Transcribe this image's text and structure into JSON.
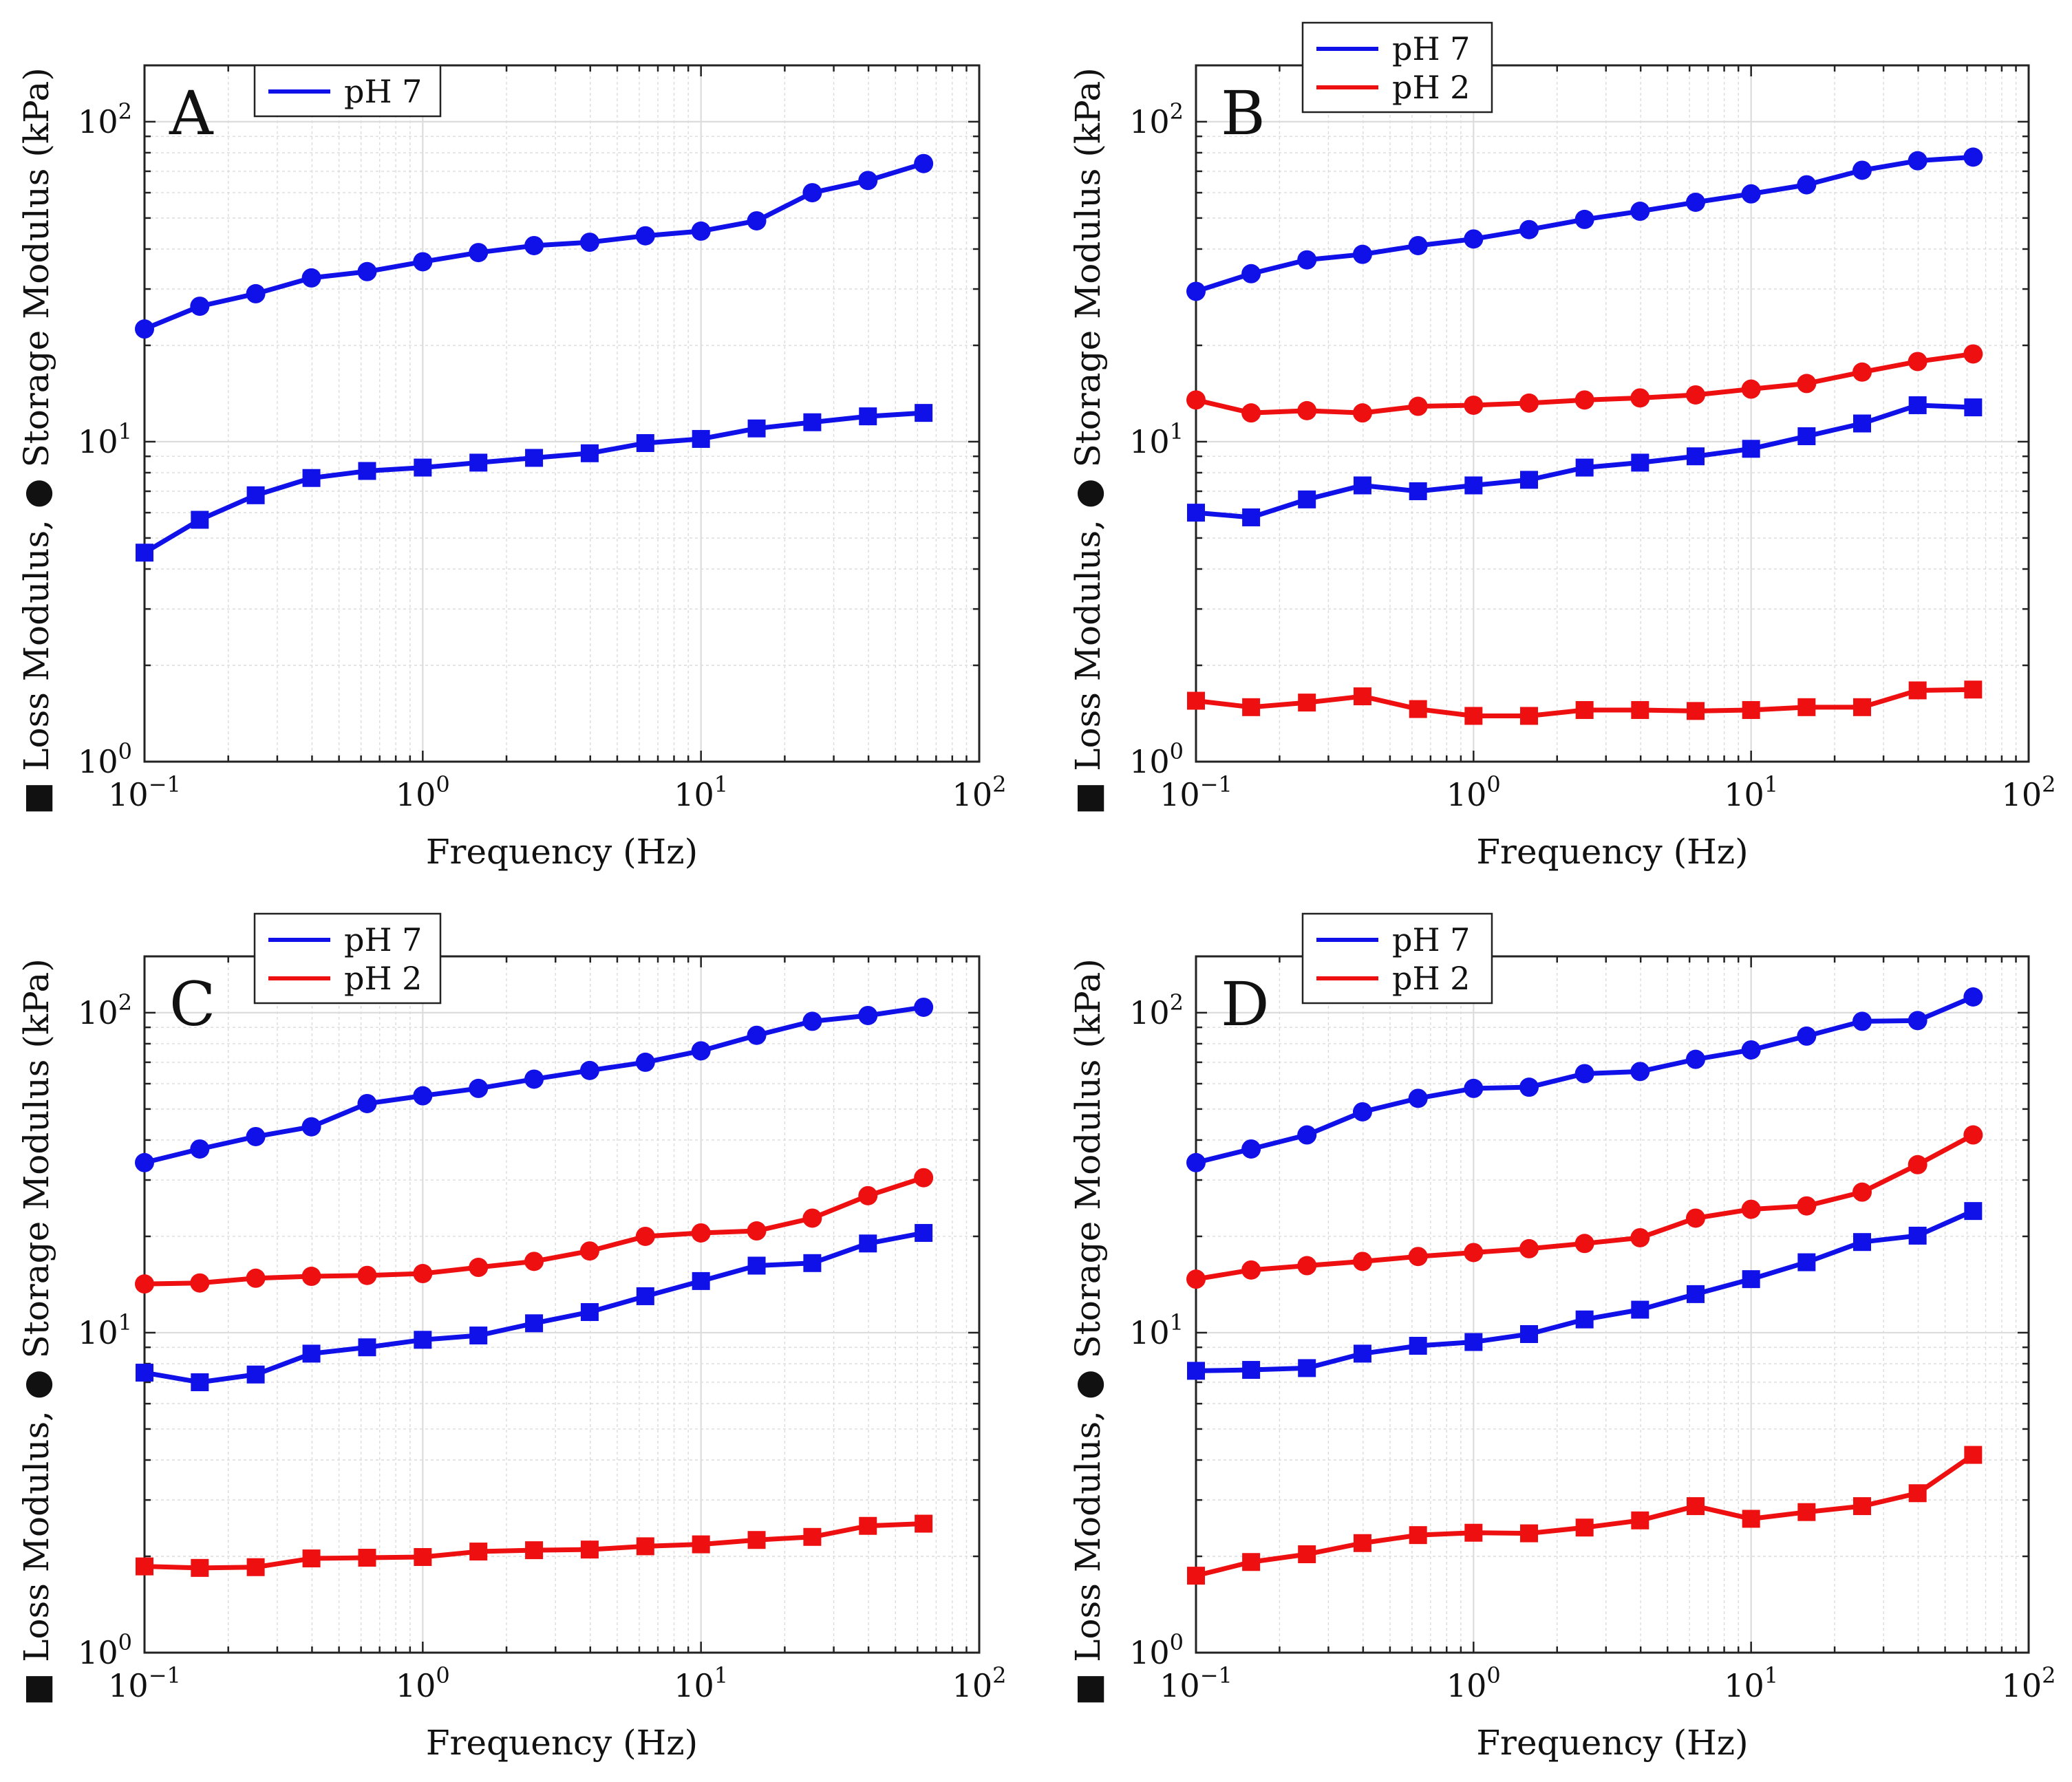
{
  "figure": {
    "ylabel": "■ Loss Modulus, ● Storage Modulus (kPa)",
    "xlabel": "Frequency (Hz)",
    "colors": {
      "pH 7": "#1010e8",
      "pH 2": "#ee1010"
    }
  },
  "chart_data": [
    {
      "type": "line",
      "panel": "A",
      "xlabel": "Frequency (Hz)",
      "ylabel": "■ Loss Modulus, ● Storage Modulus (kPa)",
      "xscale": "log",
      "yscale": "log",
      "xlim": [
        0.1,
        100
      ],
      "ylim": [
        1,
        150
      ],
      "x_ticks": [
        {
          "base": "10",
          "exp": "−1"
        },
        {
          "base": "10",
          "exp": "0"
        },
        {
          "base": "10",
          "exp": "1"
        },
        {
          "base": "10",
          "exp": "2"
        }
      ],
      "y_ticks": [
        {
          "base": "10",
          "exp": "0"
        },
        {
          "base": "10",
          "exp": "1"
        },
        {
          "base": "10",
          "exp": "2"
        }
      ],
      "grid": true,
      "legend": {
        "position": "top-left",
        "entries": [
          "pH 7"
        ]
      },
      "x": [
        0.1,
        0.158,
        0.251,
        0.398,
        0.631,
        1.0,
        1.585,
        2.512,
        3.981,
        6.31,
        10.0,
        15.85,
        25.12,
        39.81,
        63.1
      ],
      "series": [
        {
          "name": "pH 7",
          "modulus": "storage",
          "marker": "circle",
          "color": "#1010e8",
          "values": [
            22.5,
            26.5,
            29,
            32.5,
            34,
            36.5,
            39,
            41,
            42,
            44,
            45.5,
            49,
            60,
            65.5,
            74
          ]
        },
        {
          "name": "pH 7",
          "modulus": "loss",
          "marker": "square",
          "color": "#1010e8",
          "values": [
            4.5,
            5.7,
            6.8,
            7.7,
            8.1,
            8.3,
            8.6,
            8.9,
            9.2,
            9.9,
            10.2,
            11,
            11.5,
            12,
            12.3
          ]
        }
      ]
    },
    {
      "type": "line",
      "panel": "B",
      "xlabel": "Frequency (Hz)",
      "ylabel": "■ Loss Modulus, ● Storage Modulus (kPa)",
      "xscale": "log",
      "yscale": "log",
      "xlim": [
        0.1,
        100
      ],
      "ylim": [
        1,
        150
      ],
      "x_ticks": [
        {
          "base": "10",
          "exp": "−1"
        },
        {
          "base": "10",
          "exp": "0"
        },
        {
          "base": "10",
          "exp": "1"
        },
        {
          "base": "10",
          "exp": "2"
        }
      ],
      "y_ticks": [
        {
          "base": "10",
          "exp": "0"
        },
        {
          "base": "10",
          "exp": "1"
        },
        {
          "base": "10",
          "exp": "2"
        }
      ],
      "grid": true,
      "legend": {
        "position": "top-left",
        "entries": [
          "pH 7",
          "pH 2"
        ]
      },
      "x": [
        0.1,
        0.158,
        0.251,
        0.398,
        0.631,
        1.0,
        1.585,
        2.512,
        3.981,
        6.31,
        10.0,
        15.85,
        25.12,
        39.81,
        63.1
      ],
      "series": [
        {
          "name": "pH 7",
          "modulus": "storage",
          "marker": "circle",
          "color": "#1010e8",
          "values": [
            29.5,
            33.5,
            37,
            38.5,
            41,
            43,
            46,
            49.5,
            52.5,
            56,
            59.5,
            63.5,
            70.5,
            75.5,
            77.5
          ]
        },
        {
          "name": "pH 2",
          "modulus": "storage",
          "marker": "circle",
          "color": "#ee1010",
          "values": [
            13.5,
            12.3,
            12.5,
            12.3,
            12.9,
            13,
            13.2,
            13.5,
            13.7,
            14,
            14.6,
            15.2,
            16.5,
            17.8,
            18.8
          ]
        },
        {
          "name": "pH 7",
          "modulus": "loss",
          "marker": "square",
          "color": "#1010e8",
          "values": [
            6.0,
            5.8,
            6.6,
            7.3,
            7.0,
            7.3,
            7.6,
            8.3,
            8.6,
            9.0,
            9.5,
            10.4,
            11.4,
            13.0,
            12.8
          ]
        },
        {
          "name": "pH 2",
          "modulus": "loss",
          "marker": "square",
          "color": "#ee1010",
          "values": [
            1.55,
            1.48,
            1.53,
            1.6,
            1.46,
            1.39,
            1.39,
            1.45,
            1.45,
            1.44,
            1.45,
            1.48,
            1.48,
            1.67,
            1.68
          ]
        }
      ]
    },
    {
      "type": "line",
      "panel": "C",
      "xlabel": "Frequency (Hz)",
      "ylabel": "■ Loss Modulus, ● Storage Modulus (kPa)",
      "xscale": "log",
      "yscale": "log",
      "xlim": [
        0.1,
        100
      ],
      "ylim": [
        1,
        150
      ],
      "x_ticks": [
        {
          "base": "10",
          "exp": "−1"
        },
        {
          "base": "10",
          "exp": "0"
        },
        {
          "base": "10",
          "exp": "1"
        },
        {
          "base": "10",
          "exp": "2"
        }
      ],
      "y_ticks": [
        {
          "base": "10",
          "exp": "0"
        },
        {
          "base": "10",
          "exp": "1"
        },
        {
          "base": "10",
          "exp": "2"
        }
      ],
      "grid": true,
      "legend": {
        "position": "top-left",
        "entries": [
          "pH 7",
          "pH 2"
        ]
      },
      "x": [
        0.1,
        0.158,
        0.251,
        0.398,
        0.631,
        1.0,
        1.585,
        2.512,
        3.981,
        6.31,
        10.0,
        15.85,
        25.12,
        39.81,
        63.1
      ],
      "series": [
        {
          "name": "pH 7",
          "modulus": "storage",
          "marker": "circle",
          "color": "#1010e8",
          "values": [
            34,
            37.5,
            41,
            44,
            52,
            55,
            58,
            62,
            66,
            70,
            76,
            85,
            94,
            98,
            104
          ]
        },
        {
          "name": "pH 2",
          "modulus": "storage",
          "marker": "circle",
          "color": "#ee1010",
          "values": [
            14.2,
            14.3,
            14.8,
            15.0,
            15.1,
            15.3,
            16.0,
            16.7,
            18,
            20,
            20.5,
            20.8,
            22.8,
            26.8,
            30.5
          ]
        },
        {
          "name": "pH 7",
          "modulus": "loss",
          "marker": "square",
          "color": "#1010e8",
          "values": [
            7.5,
            7.0,
            7.4,
            8.6,
            9.0,
            9.5,
            9.8,
            10.7,
            11.6,
            13.0,
            14.5,
            16.2,
            16.5,
            19.0,
            20.5
          ]
        },
        {
          "name": "pH 2",
          "modulus": "loss",
          "marker": "square",
          "color": "#ee1010",
          "values": [
            1.86,
            1.84,
            1.85,
            1.97,
            1.98,
            1.99,
            2.07,
            2.09,
            2.1,
            2.15,
            2.18,
            2.25,
            2.3,
            2.49,
            2.53
          ]
        }
      ]
    },
    {
      "type": "line",
      "panel": "D",
      "xlabel": "Frequency (Hz)",
      "ylabel": "■ Loss Modulus, ● Storage Modulus (kPa)",
      "xscale": "log",
      "yscale": "log",
      "xlim": [
        0.1,
        100
      ],
      "ylim": [
        1,
        150
      ],
      "x_ticks": [
        {
          "base": "10",
          "exp": "−1"
        },
        {
          "base": "10",
          "exp": "0"
        },
        {
          "base": "10",
          "exp": "1"
        },
        {
          "base": "10",
          "exp": "2"
        }
      ],
      "y_ticks": [
        {
          "base": "10",
          "exp": "0"
        },
        {
          "base": "10",
          "exp": "1"
        },
        {
          "base": "10",
          "exp": "2"
        }
      ],
      "grid": true,
      "legend": {
        "position": "top-left",
        "entries": [
          "pH 7",
          "pH 2"
        ]
      },
      "x": [
        0.1,
        0.158,
        0.251,
        0.398,
        0.631,
        1.0,
        1.585,
        2.512,
        3.981,
        6.31,
        10.0,
        15.85,
        25.12,
        39.81,
        63.1
      ],
      "series": [
        {
          "name": "pH 7",
          "modulus": "storage",
          "marker": "circle",
          "color": "#1010e8",
          "values": [
            34,
            37.5,
            41.5,
            49,
            54,
            58,
            58.5,
            64.5,
            65.5,
            71.5,
            76.5,
            84.5,
            94,
            94.5,
            112
          ]
        },
        {
          "name": "pH 2",
          "modulus": "storage",
          "marker": "circle",
          "color": "#ee1010",
          "values": [
            14.7,
            15.7,
            16.2,
            16.7,
            17.3,
            17.8,
            18.3,
            19.0,
            19.8,
            22.8,
            24.3,
            24.9,
            27.5,
            33.5,
            41.5
          ]
        },
        {
          "name": "pH 7",
          "modulus": "loss",
          "marker": "square",
          "color": "#1010e8",
          "values": [
            7.6,
            7.65,
            7.75,
            8.6,
            9.1,
            9.35,
            9.9,
            11.0,
            11.8,
            13.2,
            14.7,
            16.6,
            19.2,
            20.1,
            24.0
          ]
        },
        {
          "name": "pH 2",
          "modulus": "loss",
          "marker": "square",
          "color": "#ee1010",
          "values": [
            1.74,
            1.92,
            2.03,
            2.2,
            2.33,
            2.37,
            2.36,
            2.46,
            2.59,
            2.87,
            2.62,
            2.75,
            2.87,
            3.15,
            4.15
          ]
        }
      ]
    }
  ]
}
